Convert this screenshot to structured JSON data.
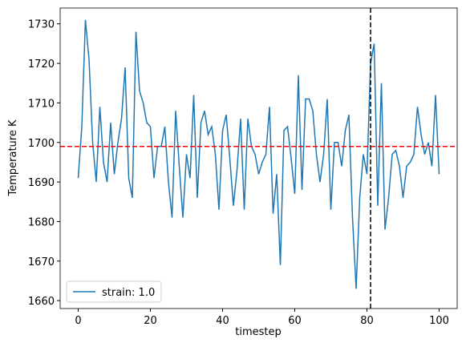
{
  "chart_data": {
    "type": "line",
    "x_label": "timestep",
    "y_label": "Temperature K",
    "x": [
      0,
      1,
      2,
      3,
      4,
      5,
      6,
      7,
      8,
      9,
      10,
      11,
      12,
      13,
      14,
      15,
      16,
      17,
      18,
      19,
      20,
      21,
      22,
      23,
      24,
      25,
      26,
      27,
      28,
      29,
      30,
      31,
      32,
      33,
      34,
      35,
      36,
      37,
      38,
      39,
      40,
      41,
      42,
      43,
      44,
      45,
      46,
      47,
      48,
      49,
      50,
      51,
      52,
      53,
      54,
      55,
      56,
      57,
      58,
      59,
      60,
      61,
      62,
      63,
      64,
      65,
      66,
      67,
      68,
      69,
      70,
      71,
      72,
      73,
      74,
      75,
      76,
      77,
      78,
      79,
      80,
      81,
      82,
      83,
      84,
      85,
      86,
      87,
      88,
      89,
      90,
      91,
      92,
      93,
      94,
      95,
      96,
      97,
      98,
      99,
      100
    ],
    "series": [
      {
        "name": "strain: 1.0",
        "color": "#1f77b4",
        "values": [
          1691,
          1704,
          1731,
          1721,
          1700,
          1690,
          1709,
          1695,
          1690,
          1705,
          1692,
          1700,
          1706,
          1719,
          1691,
          1686,
          1728,
          1713,
          1710,
          1705,
          1704,
          1691,
          1699,
          1699,
          1704,
          1690,
          1681,
          1708,
          1694,
          1681,
          1697,
          1691,
          1712,
          1686,
          1705,
          1708,
          1702,
          1704,
          1697,
          1683,
          1703,
          1707,
          1696,
          1684,
          1693,
          1706,
          1683,
          1706,
          1699,
          1697,
          1692,
          1695,
          1697,
          1709,
          1682,
          1692,
          1669,
          1703,
          1704,
          1696,
          1687,
          1717,
          1688,
          1711,
          1711,
          1708,
          1697,
          1690,
          1697,
          1711,
          1683,
          1700,
          1700,
          1694,
          1703,
          1707,
          1681,
          1663,
          1686,
          1697,
          1692,
          1720,
          1725,
          1684,
          1715,
          1678,
          1686,
          1697,
          1698,
          1694,
          1686,
          1694,
          1695,
          1697,
          1709,
          1702,
          1697,
          1700,
          1694,
          1712,
          1692
        ]
      }
    ],
    "hline": {
      "value": 1699,
      "color": "#ff0000"
    },
    "vline": {
      "value": 81,
      "color": "#000000"
    },
    "xlim": [
      -5,
      105
    ],
    "ylim": [
      1658,
      1734
    ],
    "xticks": [
      0,
      20,
      40,
      60,
      80,
      100
    ],
    "yticks": [
      1660,
      1670,
      1680,
      1690,
      1700,
      1710,
      1720,
      1730
    ],
    "legend": "lower left"
  }
}
